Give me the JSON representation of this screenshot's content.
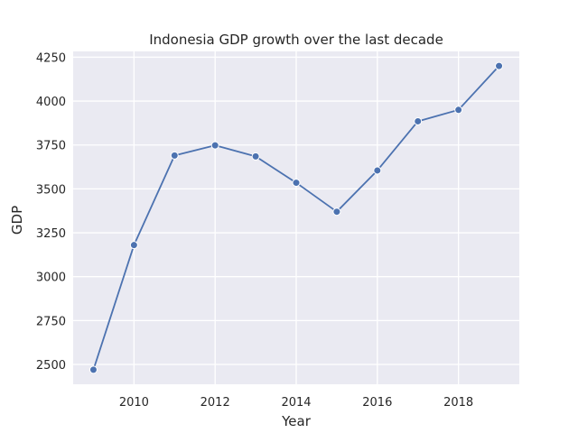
{
  "chart_data": {
    "type": "line",
    "title": "Indonesia GDP growth over the last decade",
    "xlabel": "Year",
    "ylabel": "GDP",
    "x": [
      2009,
      2010,
      2011,
      2012,
      2013,
      2014,
      2015,
      2016,
      2017,
      2018,
      2019
    ],
    "series": [
      {
        "values": [
          2470,
          3180,
          3690,
          3748,
          3685,
          3535,
          3370,
          3605,
          3885,
          3950,
          4200
        ],
        "color": "#4c72b0"
      }
    ],
    "xlim": [
      2008.5,
      2019.5
    ],
    "ylim": [
      2387,
      4283
    ],
    "xticks": [
      2010,
      2012,
      2014,
      2016,
      2018
    ],
    "yticks": [
      2500,
      2750,
      3000,
      3250,
      3500,
      3750,
      4000,
      4250
    ],
    "grid": true,
    "marker": "circle",
    "style": {
      "plot_background": "#eaeaf2",
      "grid_color": "#ffffff",
      "text_color": "#262626"
    }
  }
}
